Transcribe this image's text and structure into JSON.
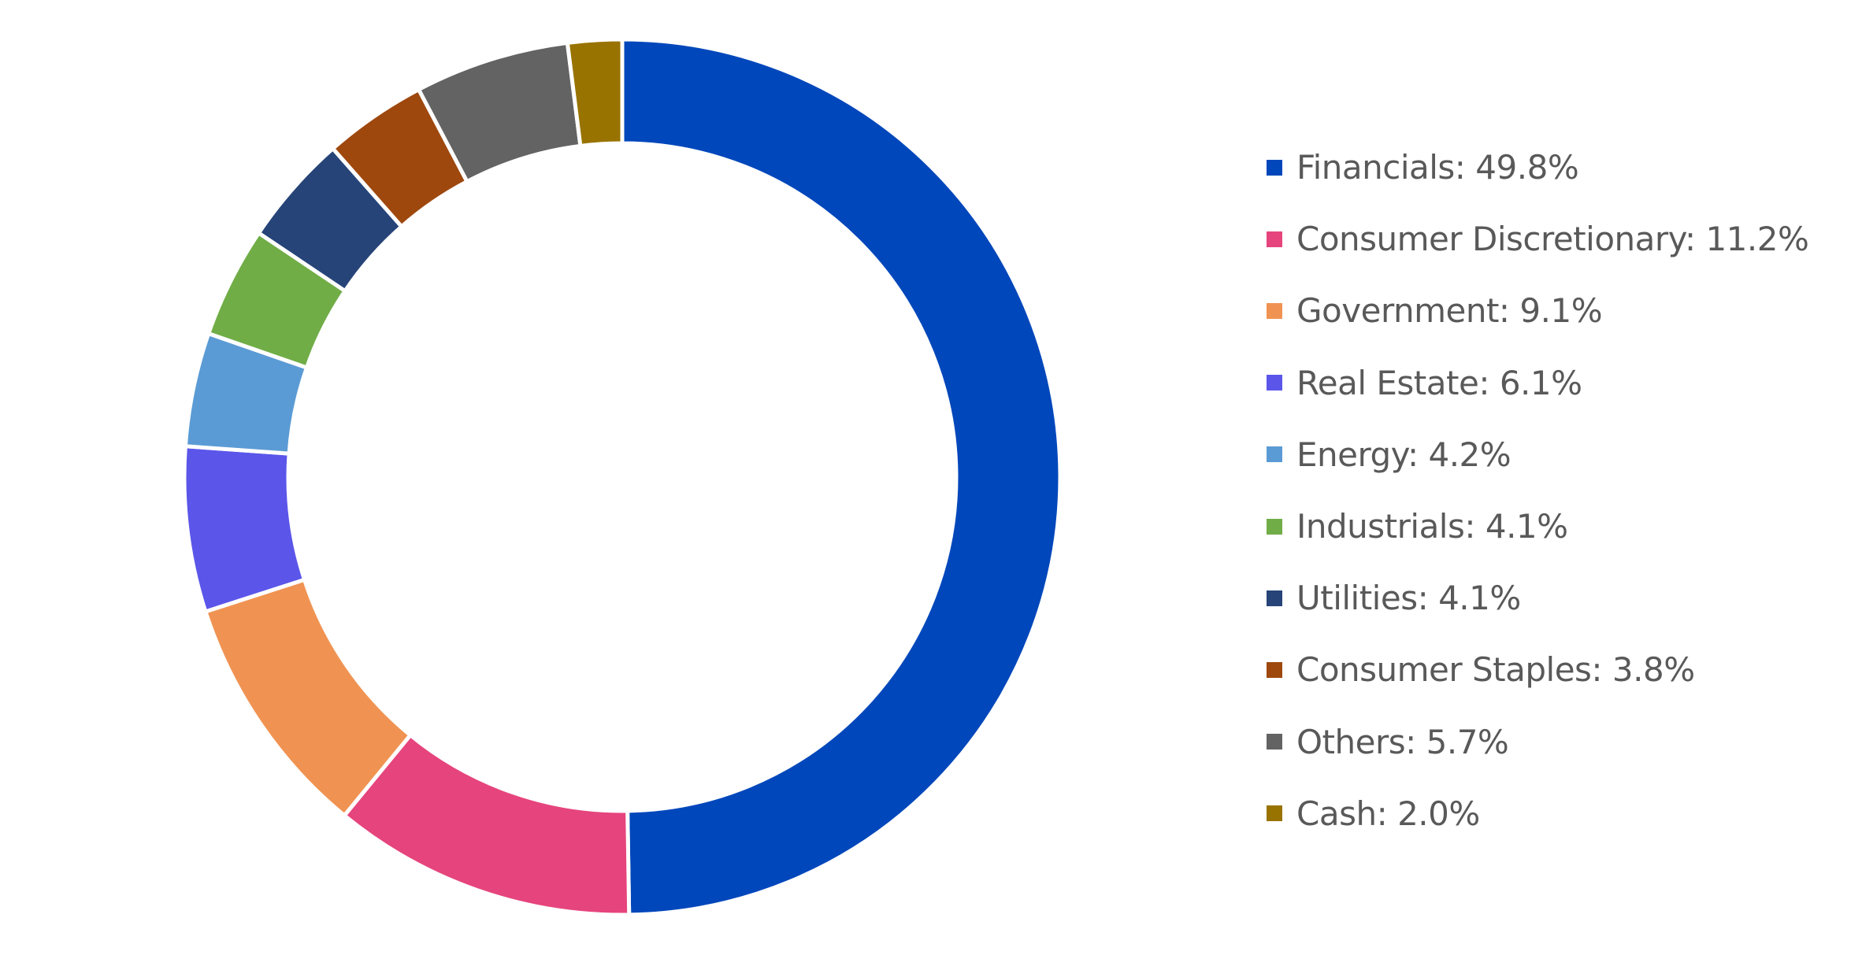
{
  "chart_data": {
    "type": "pie",
    "variant": "donut",
    "legend_position": "right",
    "slices": [
      {
        "label": "Financials: 49.8%",
        "name": "Financials",
        "value": 49.8,
        "color": "#0047BB"
      },
      {
        "label": "Consumer Discretionary: 11.2%",
        "name": "Consumer Discretionary",
        "value": 11.2,
        "color": "#E6447C"
      },
      {
        "label": "Government: 9.1%",
        "name": "Government",
        "value": 9.1,
        "color": "#F09352"
      },
      {
        "label": "Real Estate: 6.1%",
        "name": "Real Estate",
        "value": 6.1,
        "color": "#5B56E9"
      },
      {
        "label": "Energy: 4.2%",
        "name": "Energy",
        "value": 4.2,
        "color": "#5B9BD5"
      },
      {
        "label": "Industrials: 4.1%",
        "name": "Industrials",
        "value": 4.1,
        "color": "#70AD47"
      },
      {
        "label": "Utilities: 4.1%",
        "name": "Utilities",
        "value": 4.1,
        "color": "#264478"
      },
      {
        "label": "Consumer Staples: 3.8%",
        "name": "Consumer Staples",
        "value": 3.8,
        "color": "#9E480E"
      },
      {
        "label": "Others: 5.7%",
        "name": "Others",
        "value": 5.7,
        "color": "#636363"
      },
      {
        "label": "Cash: 2.0%",
        "name": "Cash",
        "value": 2.0,
        "color": "#997300"
      }
    ]
  }
}
